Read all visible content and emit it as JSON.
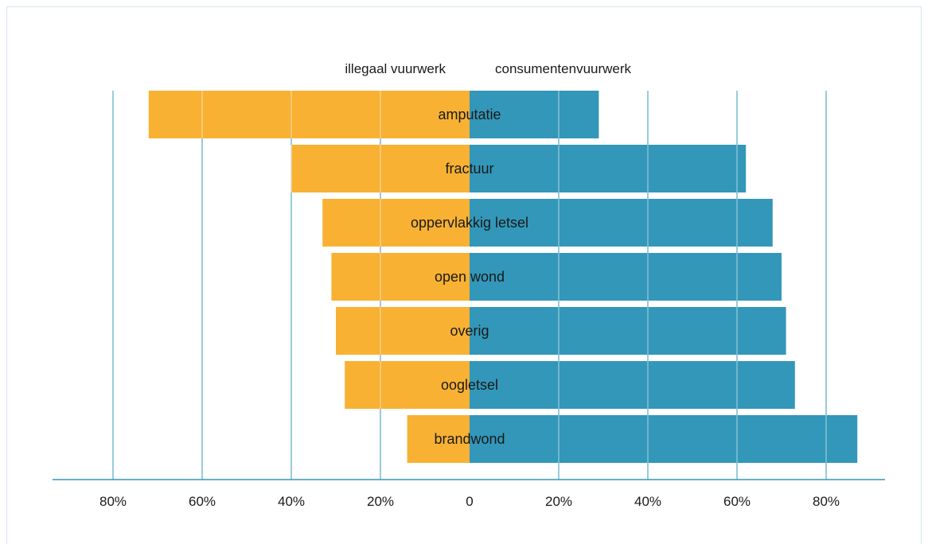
{
  "chart_data": {
    "type": "bar",
    "orientation": "horizontal-diverging",
    "categories": [
      "amputatie",
      "fractuur",
      "oppervlakkig letsel",
      "open wond",
      "overig",
      "oogletsel",
      "brandwond"
    ],
    "series": [
      {
        "name": "illegaal vuurwerk",
        "side": "left",
        "color": "#f8b133",
        "values": [
          72,
          40,
          33,
          31,
          30,
          28,
          14
        ]
      },
      {
        "name": "consumentenvuurwerk",
        "side": "right",
        "color": "#3397b9",
        "values": [
          29,
          62,
          68,
          70,
          71,
          73,
          87
        ]
      }
    ],
    "x_ticks_left": [
      "80%",
      "60%",
      "40%",
      "20%"
    ],
    "x_tick_center": "0",
    "x_ticks_right": [
      "20%",
      "40%",
      "60%",
      "80%"
    ],
    "xlim": [
      -80,
      80
    ],
    "unit": "%",
    "grid": true,
    "grid_color": "#3397b9",
    "axis_color": "#3397b9"
  }
}
